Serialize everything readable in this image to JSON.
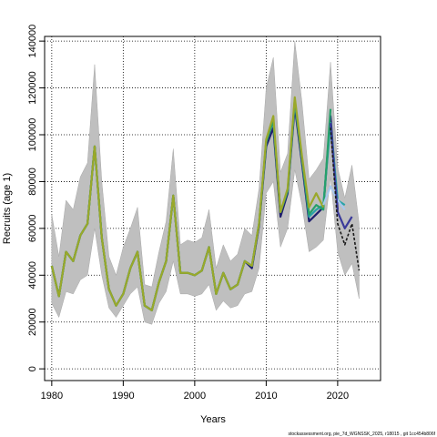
{
  "chart_data": {
    "type": "line",
    "title": "",
    "xlabel": "Years",
    "ylabel": "Recruits (age 1)",
    "xlim": [
      1979,
      2026
    ],
    "ylim": [
      -5000,
      142000
    ],
    "x_ticks": [
      1980,
      1990,
      2000,
      2010,
      2020
    ],
    "y_ticks": [
      0,
      20000,
      40000,
      60000,
      80000,
      100000,
      120000,
      140000
    ],
    "grid": true,
    "legend": "none",
    "caption": "stockassessment.org, pie_7d_WGNSSK_2025, r18015 , git 1cc454b806f",
    "confidence_band": {
      "x": [
        1980,
        1981,
        1982,
        1983,
        1984,
        1985,
        1986,
        1987,
        1988,
        1989,
        1990,
        1991,
        1992,
        1993,
        1994,
        1995,
        1996,
        1997,
        1998,
        1999,
        2000,
        2001,
        2002,
        2003,
        2004,
        2005,
        2006,
        2007,
        2008,
        2009,
        2010,
        2011,
        2012,
        2013,
        2014,
        2015,
        2016,
        2017,
        2018,
        2019,
        2020,
        2021,
        2022,
        2023
      ],
      "lower": [
        28000,
        22000,
        33000,
        32000,
        38000,
        40000,
        60000,
        40000,
        26000,
        22000,
        27000,
        32000,
        35000,
        20000,
        19000,
        28000,
        33000,
        46000,
        32000,
        32000,
        31000,
        32000,
        36000,
        25000,
        29000,
        26000,
        27000,
        32000,
        33000,
        43000,
        75000,
        80000,
        52000,
        60000,
        85000,
        70000,
        50000,
        52000,
        55000,
        82000,
        50000,
        40000,
        45000,
        30000
      ],
      "upper": [
        66000,
        48000,
        72000,
        68000,
        82000,
        88000,
        130000,
        80000,
        48000,
        40000,
        52000,
        60000,
        69000,
        36000,
        35000,
        50000,
        63000,
        94000,
        53000,
        55000,
        54000,
        56000,
        68000,
        43000,
        53000,
        46000,
        49000,
        60000,
        57000,
        77000,
        120000,
        133000,
        84000,
        92000,
        140000,
        114000,
        81000,
        85000,
        90000,
        131000,
        86000,
        73000,
        87000,
        62000
      ]
    },
    "series": [
      {
        "color": "#1f1f6e",
        "x": [
          1980,
          1981,
          1982,
          1983,
          1984,
          1985,
          1986,
          1987,
          1988,
          1989,
          1990,
          1991,
          1992,
          1993,
          1994,
          1995,
          1996,
          1997,
          1998,
          1999,
          2000,
          2001,
          2002,
          2003,
          2004,
          2005,
          2006,
          2007,
          2008,
          2009,
          2010,
          2011,
          2012,
          2013,
          2014,
          2015,
          2016,
          2017,
          2018,
          2019,
          2020
        ],
        "values": [
          44000,
          31000,
          50000,
          46000,
          57000,
          62000,
          95000,
          56000,
          34000,
          27000,
          32000,
          43000,
          50000,
          27000,
          25000,
          37000,
          46000,
          74000,
          41000,
          41000,
          40000,
          42000,
          52000,
          32000,
          41000,
          34000,
          36000,
          46000,
          43000,
          61000,
          95000,
          103000,
          65000,
          75000,
          112000,
          88000,
          63000,
          66000,
          69000,
          108000,
          68000
        ]
      },
      {
        "color": "#2aa3a8",
        "x": [
          1980,
          1981,
          1982,
          1983,
          1984,
          1985,
          1986,
          1987,
          1988,
          1989,
          1990,
          1991,
          1992,
          1993,
          1994,
          1995,
          1996,
          1997,
          1998,
          1999,
          2000,
          2001,
          2002,
          2003,
          2004,
          2005,
          2006,
          2007,
          2008,
          2009,
          2010,
          2011,
          2012,
          2013,
          2014,
          2015,
          2016,
          2017,
          2018,
          2019,
          2020,
          2021
        ],
        "values": [
          44000,
          31000,
          50000,
          46000,
          57000,
          62000,
          95000,
          56000,
          34000,
          27000,
          32000,
          43000,
          50000,
          27000,
          25000,
          37000,
          46000,
          74000,
          41000,
          41000,
          40000,
          42000,
          52000,
          32000,
          41000,
          34000,
          36000,
          46000,
          44000,
          62000,
          97000,
          106000,
          67000,
          76000,
          114000,
          90000,
          65000,
          68000,
          70000,
          105000,
          72000,
          70000
        ]
      },
      {
        "color": "#26a06a",
        "x": [
          1980,
          1981,
          1982,
          1983,
          1984,
          1985,
          1986,
          1987,
          1988,
          1989,
          1990,
          1991,
          1992,
          1993,
          1994,
          1995,
          1996,
          1997,
          1998,
          1999,
          2000,
          2001,
          2002,
          2003,
          2004,
          2005,
          2006,
          2007,
          2008,
          2009,
          2010,
          2011,
          2012,
          2013,
          2014,
          2015,
          2016,
          2017,
          2018,
          2019
        ],
        "values": [
          44000,
          31000,
          50000,
          46000,
          57000,
          62000,
          95000,
          56000,
          34000,
          27000,
          32000,
          43000,
          50000,
          27000,
          25000,
          37000,
          46000,
          74000,
          41000,
          41000,
          40000,
          42000,
          52000,
          32000,
          41000,
          34000,
          36000,
          46000,
          44000,
          62000,
          97000,
          106000,
          67000,
          76000,
          115000,
          90000,
          66000,
          70000,
          68000,
          111000
        ]
      },
      {
        "color": "#9aa82a",
        "x": [
          1980,
          1981,
          1982,
          1983,
          1984,
          1985,
          1986,
          1987,
          1988,
          1989,
          1990,
          1991,
          1992,
          1993,
          1994,
          1995,
          1996,
          1997,
          1998,
          1999,
          2000,
          2001,
          2002,
          2003,
          2004,
          2005,
          2006,
          2007,
          2008,
          2009,
          2010,
          2011,
          2012,
          2013,
          2014,
          2015,
          2016,
          2017,
          2018
        ],
        "values": [
          44000,
          31000,
          50000,
          46000,
          57000,
          62000,
          95000,
          56000,
          34000,
          27000,
          32000,
          43000,
          50000,
          27000,
          25000,
          37000,
          46000,
          74000,
          41000,
          41000,
          40000,
          42000,
          52000,
          32000,
          41000,
          34000,
          36000,
          46000,
          44000,
          62000,
          98000,
          108000,
          67000,
          77000,
          116000,
          91000,
          69000,
          75000,
          69000
        ]
      },
      {
        "color": "#a9c8ec",
        "x": [
          2018,
          2019,
          2020,
          2021
        ],
        "values": [
          70000,
          78000,
          72000,
          68000
        ]
      },
      {
        "color": "#3a3a9a",
        "x": [
          2019,
          2020,
          2021,
          2022
        ],
        "values": [
          105000,
          67000,
          60000,
          65000
        ]
      },
      {
        "color": "#1a1a1a",
        "dashed": true,
        "x": [
          2019,
          2020,
          2021,
          2022,
          2023
        ],
        "values": [
          103000,
          62000,
          53000,
          62000,
          42000
        ]
      }
    ]
  }
}
